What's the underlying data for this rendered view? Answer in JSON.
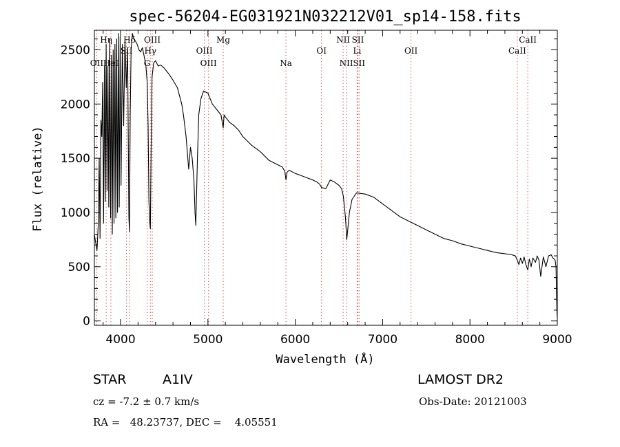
{
  "chart_data": {
    "type": "line",
    "title": "spec-56204-EG031921N032212V01_sp14-158.fits",
    "xlabel": "Wavelength (Å)",
    "ylabel": "Flux (relative)",
    "xlim": [
      3700,
      9000
    ],
    "ylim": [
      -40,
      2680
    ],
    "xticks": [
      4000,
      5000,
      6000,
      7000,
      8000,
      9000
    ],
    "yticks": [
      0,
      500,
      1000,
      1500,
      2000,
      2500
    ],
    "grid": false,
    "line_color": "#000000",
    "marker_color": "#e05050",
    "series": [
      {
        "x": [
          3700,
          3715,
          3730,
          3745,
          3755,
          3765,
          3775,
          3785,
          3795,
          3805,
          3815,
          3825,
          3835,
          3845,
          3855,
          3865,
          3875,
          3885,
          3895,
          3905,
          3915,
          3925,
          3935,
          3945,
          3955,
          3965,
          3975,
          3985,
          3995,
          4005,
          4020,
          4035,
          4050,
          4065,
          4080,
          4095,
          4102,
          4110,
          4120,
          4135,
          4150,
          4170,
          4190,
          4210,
          4230,
          4250,
          4270,
          4290,
          4305,
          4315,
          4325,
          4335,
          4341,
          4350,
          4360,
          4380,
          4400,
          4430,
          4460,
          4500,
          4550,
          4600,
          4650,
          4700,
          4720,
          4750,
          4780,
          4800,
          4820,
          4840,
          4852,
          4861,
          4870,
          4880,
          4895,
          4920,
          4950,
          5000,
          5050,
          5100,
          5150,
          5175,
          5185,
          5200,
          5250,
          5300,
          5350,
          5400,
          5450,
          5500,
          5600,
          5700,
          5800,
          5850,
          5880,
          5893,
          5905,
          5930,
          6000,
          6100,
          6200,
          6250,
          6280,
          6300,
          6350,
          6400,
          6450,
          6500,
          6530,
          6550,
          6563,
          6575,
          6590,
          6620,
          6650,
          6700,
          6800,
          6900,
          7000,
          7100,
          7200,
          7300,
          7400,
          7500,
          7600,
          7700,
          7800,
          7900,
          8000,
          8100,
          8200,
          8300,
          8400,
          8480,
          8500,
          8520,
          8542,
          8560,
          8580,
          8600,
          8620,
          8640,
          8662,
          8680,
          8700,
          8720,
          8750,
          8770,
          8790,
          8810,
          8840,
          8870,
          8900,
          8930,
          8950,
          8965,
          8975,
          8985,
          8990,
          8995,
          9000
        ],
        "y": [
          800,
          720,
          650,
          900,
          1500,
          760,
          1850,
          1700,
          2200,
          900,
          2350,
          1100,
          2550,
          1200,
          2350,
          1050,
          2600,
          950,
          2450,
          800,
          2500,
          900,
          2550,
          950,
          2600,
          1000,
          2650,
          1050,
          2620,
          1250,
          2550,
          1800,
          2600,
          2150,
          2500,
          950,
          820,
          1900,
          2500,
          2650,
          2600,
          2580,
          2550,
          2500,
          2480,
          2520,
          2440,
          2350,
          2200,
          1800,
          1100,
          900,
          850,
          1600,
          2250,
          2380,
          2400,
          2350,
          2360,
          2330,
          2280,
          2220,
          2150,
          2000,
          1900,
          1700,
          1400,
          1600,
          1500,
          1300,
          1000,
          880,
          1150,
          1500,
          1900,
          2050,
          2120,
          2100,
          2000,
          1950,
          1900,
          1780,
          1900,
          1880,
          1830,
          1800,
          1760,
          1700,
          1660,
          1620,
          1560,
          1480,
          1440,
          1420,
          1380,
          1300,
          1370,
          1390,
          1360,
          1330,
          1300,
          1280,
          1260,
          1230,
          1220,
          1300,
          1280,
          1250,
          1220,
          1150,
          1050,
          950,
          750,
          1000,
          1120,
          1180,
          1170,
          1140,
          1080,
          1020,
          960,
          920,
          880,
          840,
          800,
          760,
          740,
          710,
          690,
          670,
          650,
          630,
          620,
          610,
          605,
          600,
          560,
          520,
          580,
          530,
          590,
          520,
          470,
          570,
          500,
          580,
          540,
          600,
          560,
          410,
          590,
          500,
          600,
          610,
          580,
          570,
          560,
          500,
          300,
          100,
          20
        ]
      }
    ],
    "line_markers": {
      "top_row1": [
        {
          "label": "Hη",
          "x": 3835
        },
        {
          "label": "Hδ",
          "x": 4102
        },
        {
          "label": "OIII",
          "x": 4363
        },
        {
          "label": "Mg",
          "x": 5175
        },
        {
          "label": "NII",
          "x": 6548
        },
        {
          "label": "SII",
          "x": 6717
        },
        {
          "label": "CaII",
          "x": 8662
        }
      ],
      "top_row2": [
        {
          "label": "SII",
          "x": 4068
        },
        {
          "label": "Hγ",
          "x": 4341
        },
        {
          "label": "OIII",
          "x": 4959
        },
        {
          "label": "OI",
          "x": 6300
        },
        {
          "label": "Li",
          "x": 6708
        },
        {
          "label": "OII",
          "x": 7325
        },
        {
          "label": "CaII",
          "x": 8542
        }
      ],
      "top_row3": [
        {
          "label": "OII",
          "x": 3727
        },
        {
          "label": "HeI",
          "x": 3889
        },
        {
          "label": "G",
          "x": 4304
        },
        {
          "label": "OIII",
          "x": 5007
        },
        {
          "label": "Na",
          "x": 5893
        },
        {
          "label": "NII",
          "x": 6584
        },
        {
          "label": "SII",
          "x": 6731
        }
      ],
      "lines_x": [
        3727,
        3835,
        3889,
        4068,
        4102,
        4304,
        4341,
        4363,
        4959,
        5007,
        5175,
        5893,
        6300,
        6548,
        6584,
        6708,
        6717,
        6731,
        7325,
        8542,
        8662
      ]
    }
  },
  "info": {
    "object_type": "STAR",
    "subclass": "A1IV",
    "survey": "LAMOST DR2",
    "cz": "cz = -7.2 ± 0.7 km/s",
    "obs_date": "Obs-Date: 20121003",
    "coords": "RA =   48.23737, DEC =    4.05551"
  }
}
